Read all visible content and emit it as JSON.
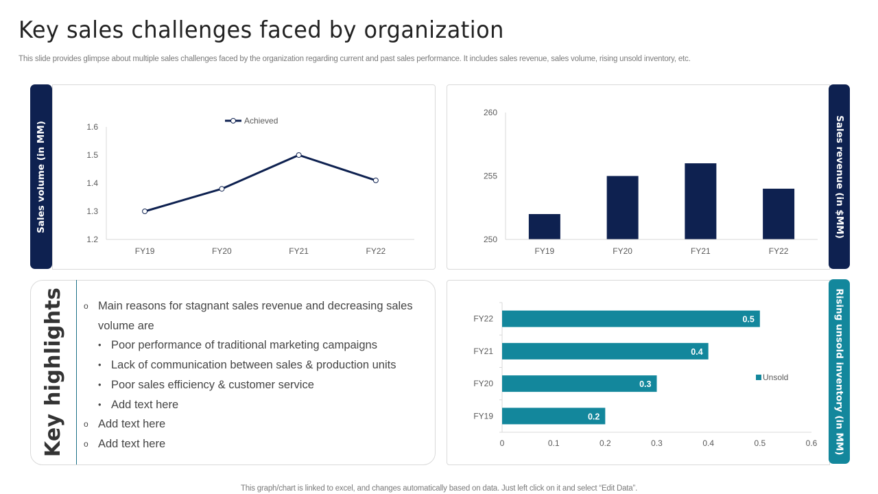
{
  "page": {
    "title": "Key sales challenges faced by organization",
    "subtitle": "This slide provides glimpse about multiple sales challenges faced by the organization regarding current and past sales performance. It includes sales revenue, sales volume, rising unsold inventory, etc.",
    "footer": "This graph/chart is linked to excel,  and changes automatically based on data. Just left click on it and select “Edit Data”."
  },
  "colors": {
    "navy": "#0e2150",
    "teal": "#13879c",
    "grid": "#d9d9d9",
    "text_muted": "#7a7a7a"
  },
  "tabs": {
    "sales_volume": "Sales volume (in MM)",
    "sales_revenue": "Sales revenue (in $MM)",
    "unsold_inventory": "Rising unsold inventory (in MM)"
  },
  "highlights": {
    "label": "Key highlights",
    "main_marker": "o",
    "sub_marker": "•",
    "items": [
      {
        "text": "Main reasons for stagnant sales revenue and decreasing sales volume are",
        "sub": [
          "Poor performance of traditional marketing campaigns",
          "Lack of communication between sales & production units",
          "Poor sales efficiency & customer service",
          "Add text here"
        ]
      },
      {
        "text": "Add text here",
        "sub": []
      },
      {
        "text": "Add text here",
        "sub": []
      }
    ]
  },
  "chart_data": [
    {
      "id": "sales_volume",
      "type": "line",
      "title": "",
      "ylabel": "Sales volume (in MM)",
      "categories": [
        "FY19",
        "FY20",
        "FY21",
        "FY22"
      ],
      "series": [
        {
          "name": "Achieved",
          "values": [
            1.3,
            1.38,
            1.5,
            1.41
          ]
        }
      ],
      "ylim": [
        1.2,
        1.6
      ],
      "yticks": [
        "1.2",
        "1.3",
        "1.4",
        "1.5",
        "1.6"
      ],
      "legend": "top-center",
      "grid": false
    },
    {
      "id": "sales_revenue",
      "type": "bar",
      "title": "",
      "ylabel": "Sales revenue (in $MM)",
      "categories": [
        "FY19",
        "FY20",
        "FY21",
        "FY22"
      ],
      "values": [
        252,
        255,
        256,
        254
      ],
      "ylim": [
        250,
        260
      ],
      "yticks": [
        "250",
        "255",
        "260"
      ],
      "legend": "none",
      "grid": false
    },
    {
      "id": "unsold_inventory",
      "type": "bar",
      "orientation": "horizontal",
      "title": "",
      "ylabel": "Rising unsold inventory (in MM)",
      "categories": [
        "FY22",
        "FY21",
        "FY20",
        "FY19"
      ],
      "series": [
        {
          "name": "Unsold",
          "values": [
            0.5,
            0.4,
            0.3,
            0.2
          ]
        }
      ],
      "data_labels": [
        "0.5",
        "0.4",
        "0.3",
        "0.2"
      ],
      "xlim": [
        0,
        0.6
      ],
      "xticks": [
        "0",
        "0.1",
        "0.2",
        "0.3",
        "0.4",
        "0.5",
        "0.6"
      ],
      "legend": "right",
      "grid": false
    }
  ]
}
